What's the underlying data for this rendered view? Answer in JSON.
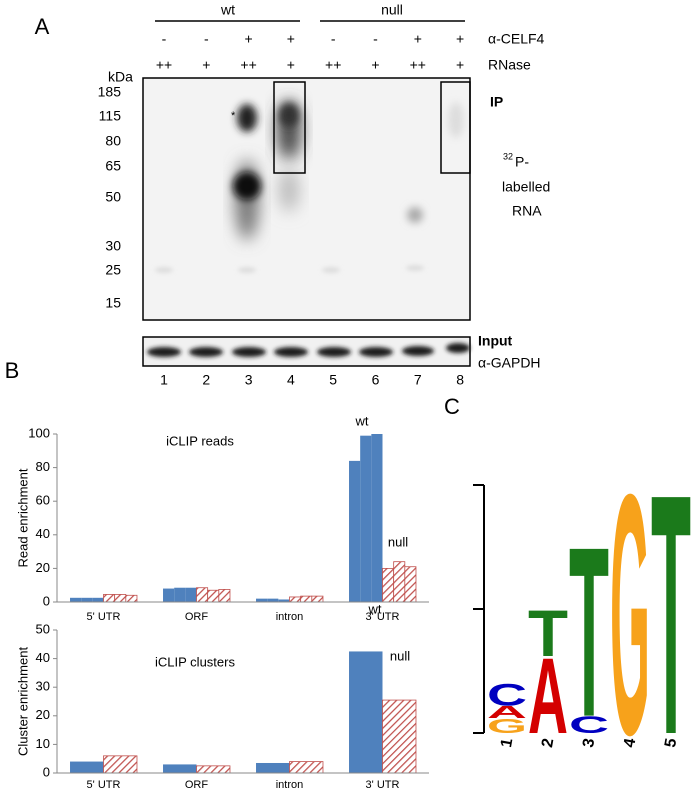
{
  "panel_a": {
    "panel_letter": "A",
    "group_labels": [
      "wt",
      "null"
    ],
    "antibody_row": {
      "label": "α-CELF4",
      "cells": [
        "-",
        "-",
        "+",
        "+",
        "-",
        "-",
        "+",
        "+"
      ]
    },
    "rnase_row": {
      "label": "RNase",
      "cells": [
        "++",
        "+",
        "++",
        "+",
        "++",
        "+",
        "++",
        "+"
      ]
    },
    "marker_unit": "kDa",
    "markers": [
      185,
      115,
      80,
      65,
      50,
      30,
      25,
      15
    ],
    "star": "*",
    "ip_label": "IP",
    "rna_label": {
      "isotope": "32",
      "lines": [
        "P-",
        "labelled",
        "RNA"
      ]
    },
    "input_label": "Input",
    "loading_label": "α-GAPDH",
    "lanes": [
      1,
      2,
      3,
      4,
      5,
      6,
      7,
      8
    ]
  },
  "chart_data": [
    {
      "type": "bar",
      "panel_letter": "B",
      "y_label": "Read enrichment",
      "annotations": [
        "iCLIP reads",
        "wt",
        "null"
      ],
      "categories": [
        "5' UTR",
        "ORF",
        "intron",
        "3' UTR"
      ],
      "series": [
        {
          "color": "#4f81bd",
          "values": [
            2.5,
            8,
            2,
            84
          ]
        },
        {
          "color": "#4f81bd",
          "values": [
            2.5,
            8.5,
            2,
            99
          ]
        },
        {
          "color": "#4f81bd",
          "values": [
            2.5,
            8.5,
            1.5,
            100
          ]
        },
        {
          "color": "#c0504d",
          "hatch": true,
          "values": [
            4.5,
            8.5,
            3,
            20
          ]
        },
        {
          "color": "#c0504d",
          "hatch": true,
          "values": [
            4.5,
            7,
            3.5,
            24
          ]
        },
        {
          "color": "#c0504d",
          "hatch": true,
          "values": [
            4,
            7.5,
            3.5,
            21
          ]
        }
      ],
      "ylim": [
        0,
        100
      ],
      "yticks": [
        0,
        20,
        40,
        60,
        80,
        100
      ]
    },
    {
      "type": "bar",
      "y_label": "Cluster enrichment",
      "annotations": [
        "iCLIP clusters",
        "wt",
        "null"
      ],
      "categories": [
        "5' UTR",
        "ORF",
        "intron",
        "3' UTR"
      ],
      "series": [
        {
          "color": "#4f81bd",
          "values": [
            4,
            3,
            3.5,
            42.5
          ]
        },
        {
          "color": "#c0504d",
          "hatch": true,
          "values": [
            6,
            2.5,
            4,
            25.5
          ]
        }
      ],
      "ylim": [
        0,
        50
      ],
      "yticks": [
        0,
        10,
        20,
        30,
        40,
        50
      ]
    },
    {
      "type": "logo",
      "panel_letter": "C",
      "ylim": [
        0,
        2
      ],
      "yticks": [
        0,
        1,
        2
      ],
      "colors": {
        "A": "#d40000",
        "C": "#0000c0",
        "G": "#f7a21b",
        "T": "#1b7a1b"
      },
      "positions": [
        "1",
        "2",
        "3",
        "4",
        "5"
      ],
      "letters": [
        [
          {
            "letter": "G",
            "height": 0.12
          },
          {
            "letter": "A",
            "height": 0.1
          },
          {
            "letter": "C",
            "height": 0.18
          }
        ],
        [
          {
            "letter": "A",
            "height": 0.62
          },
          {
            "letter": "T",
            "height": 0.38
          }
        ],
        [
          {
            "letter": "C",
            "height": 0.14
          },
          {
            "letter": "T",
            "height": 1.4
          }
        ],
        [
          {
            "letter": "G",
            "height": 1.98
          }
        ],
        [
          {
            "letter": "T",
            "height": 1.98
          }
        ]
      ]
    }
  ]
}
